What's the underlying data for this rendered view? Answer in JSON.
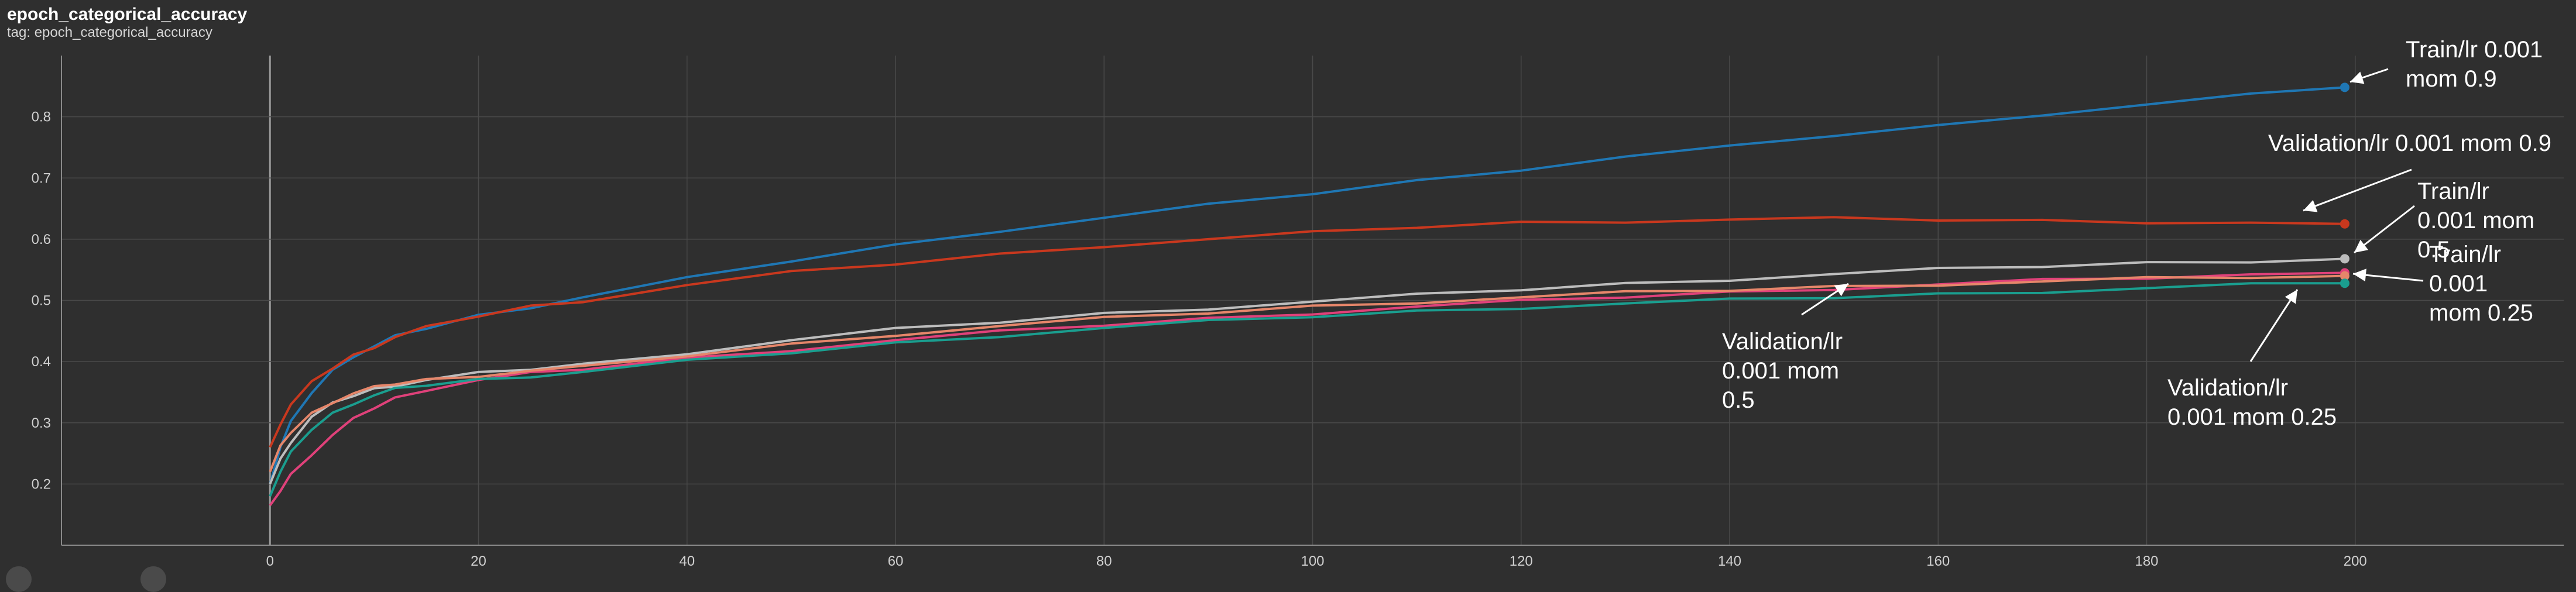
{
  "header": {
    "title": "epoch_categorical_accuracy",
    "subtitle": "tag: epoch_categorical_accuracy"
  },
  "colors": {
    "background": "#2f2f2f",
    "grid": "#4a4a4a",
    "axis": "#8a8a8a",
    "arrow": "#ffffff"
  },
  "chart_data": {
    "type": "line",
    "title": "epoch_categorical_accuracy",
    "xlabel": "",
    "ylabel": "",
    "xlim": [
      -20,
      220
    ],
    "ylim": [
      0.1,
      0.9
    ],
    "x_ticks": [
      0,
      20,
      40,
      60,
      80,
      100,
      120,
      140,
      160,
      180,
      200
    ],
    "y_ticks": [
      0.2,
      0.3,
      0.4,
      0.5,
      0.6,
      0.7,
      0.8
    ],
    "grid": true,
    "legend": "none",
    "series": [
      {
        "name": "Train/lr 0.001 mom 0.9",
        "color": "#1f77b4",
        "x": [
          0,
          1,
          2,
          4,
          6,
          8,
          10,
          12,
          15,
          20,
          25,
          30,
          40,
          50,
          60,
          70,
          80,
          90,
          100,
          110,
          120,
          130,
          140,
          150,
          160,
          170,
          180,
          190,
          199
        ],
        "y": [
          0.2,
          0.26,
          0.3,
          0.35,
          0.385,
          0.41,
          0.425,
          0.44,
          0.455,
          0.475,
          0.49,
          0.505,
          0.535,
          0.565,
          0.59,
          0.615,
          0.635,
          0.655,
          0.675,
          0.695,
          0.715,
          0.735,
          0.75,
          0.77,
          0.785,
          0.805,
          0.82,
          0.835,
          0.848
        ]
      },
      {
        "name": "Validation/lr 0.001 mom 0.9",
        "color": "#c9381e",
        "x": [
          0,
          1,
          2,
          4,
          6,
          8,
          10,
          12,
          15,
          20,
          25,
          30,
          40,
          50,
          60,
          70,
          80,
          90,
          100,
          110,
          120,
          130,
          140,
          150,
          160,
          170,
          180,
          190,
          199
        ],
        "y": [
          0.26,
          0.3,
          0.33,
          0.365,
          0.39,
          0.41,
          0.425,
          0.44,
          0.455,
          0.475,
          0.49,
          0.5,
          0.525,
          0.545,
          0.56,
          0.575,
          0.59,
          0.6,
          0.61,
          0.62,
          0.627,
          0.63,
          0.632,
          0.633,
          0.632,
          0.63,
          0.629,
          0.627,
          0.625
        ]
      },
      {
        "name": "Train/lr 0.001 mom 0.5",
        "color": "#bdbdbd",
        "x": [
          0,
          1,
          2,
          4,
          6,
          8,
          10,
          12,
          15,
          20,
          25,
          30,
          40,
          50,
          60,
          70,
          80,
          90,
          100,
          110,
          120,
          130,
          140,
          150,
          160,
          170,
          180,
          190,
          199
        ],
        "y": [
          0.2,
          0.24,
          0.27,
          0.31,
          0.33,
          0.345,
          0.355,
          0.362,
          0.37,
          0.38,
          0.388,
          0.395,
          0.415,
          0.435,
          0.452,
          0.465,
          0.478,
          0.488,
          0.498,
          0.508,
          0.518,
          0.527,
          0.535,
          0.543,
          0.55,
          0.556,
          0.561,
          0.565,
          0.568
        ]
      },
      {
        "name": "Train/lr 0.001 mom 0.25",
        "color": "#e0417a",
        "x": [
          0,
          1,
          2,
          4,
          6,
          8,
          10,
          12,
          15,
          20,
          25,
          30,
          40,
          50,
          60,
          70,
          80,
          90,
          100,
          110,
          120,
          130,
          140,
          150,
          160,
          170,
          180,
          190,
          199
        ],
        "y": [
          0.165,
          0.19,
          0.215,
          0.25,
          0.28,
          0.305,
          0.325,
          0.34,
          0.355,
          0.37,
          0.38,
          0.388,
          0.405,
          0.42,
          0.435,
          0.448,
          0.46,
          0.47,
          0.48,
          0.49,
          0.498,
          0.506,
          0.513,
          0.52,
          0.526,
          0.532,
          0.537,
          0.541,
          0.545
        ]
      },
      {
        "name": "Validation/lr 0.001 mom 0.5",
        "color": "#e6866a",
        "x": [
          0,
          1,
          2,
          4,
          6,
          8,
          10,
          12,
          15,
          20,
          25,
          30,
          40,
          50,
          60,
          70,
          80,
          90,
          100,
          110,
          120,
          130,
          140,
          150,
          160,
          170,
          180,
          190,
          199
        ],
        "y": [
          0.22,
          0.26,
          0.285,
          0.315,
          0.335,
          0.348,
          0.357,
          0.364,
          0.37,
          0.378,
          0.385,
          0.39,
          0.41,
          0.428,
          0.445,
          0.458,
          0.47,
          0.48,
          0.49,
          0.498,
          0.505,
          0.512,
          0.517,
          0.522,
          0.527,
          0.531,
          0.535,
          0.538,
          0.54
        ]
      },
      {
        "name": "Validation/lr 0.001 mom 0.25",
        "color": "#1a9e8f",
        "x": [
          0,
          1,
          2,
          4,
          6,
          8,
          10,
          12,
          15,
          20,
          25,
          30,
          40,
          50,
          60,
          70,
          80,
          90,
          100,
          110,
          120,
          130,
          140,
          150,
          160,
          170,
          180,
          190,
          199
        ],
        "y": [
          0.18,
          0.22,
          0.25,
          0.29,
          0.315,
          0.333,
          0.345,
          0.354,
          0.362,
          0.37,
          0.377,
          0.383,
          0.4,
          0.415,
          0.43,
          0.443,
          0.455,
          0.465,
          0.474,
          0.482,
          0.489,
          0.495,
          0.5,
          0.505,
          0.51,
          0.515,
          0.52,
          0.525,
          0.528
        ]
      }
    ],
    "annotations": [
      {
        "lines": [
          "Train/lr 0.001",
          "mom 0.9"
        ],
        "target": "Train/lr 0.001 mom 0.9"
      },
      {
        "lines": [
          "Validation/lr 0.001 mom 0.9"
        ],
        "target": "Validation/lr 0.001 mom 0.9"
      },
      {
        "lines": [
          "Train/lr",
          "0.001 mom",
          "0.5"
        ],
        "target": "Train/lr 0.001 mom 0.5"
      },
      {
        "lines": [
          "Train/lr",
          "0.001",
          "mom 0.25"
        ],
        "target": "Train/lr 0.001 mom 0.25"
      },
      {
        "lines": [
          "Validation/lr",
          "0.001 mom",
          "0.5"
        ],
        "target": "Validation/lr 0.001 mom 0.5"
      },
      {
        "lines": [
          "Validation/lr",
          "0.001 mom 0.25"
        ],
        "target": "Validation/lr 0.001 mom 0.25"
      }
    ]
  }
}
